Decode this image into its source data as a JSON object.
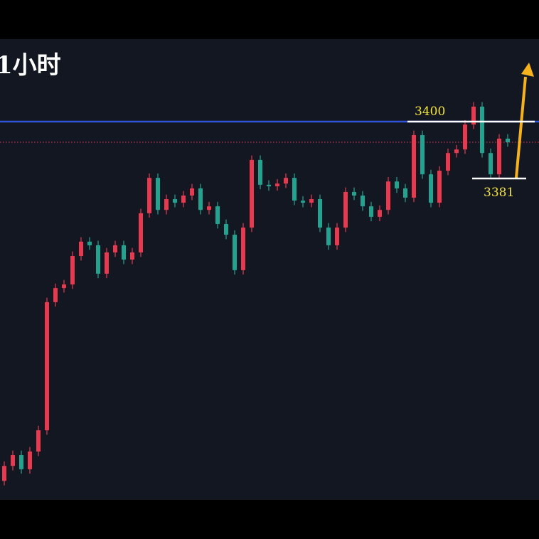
{
  "chart_data": {
    "type": "candlestick",
    "title": "1小时",
    "up_color": "#e8394f",
    "down_color": "#22a38f",
    "ylim": [
      3273.65,
      3427.55
    ],
    "open": [
      3280.0,
      3285.0,
      3288.6,
      3283.9,
      3289.8,
      3296.9,
      3339.7,
      3344.4,
      3345.6,
      3355.1,
      3359.9,
      3358.7,
      3349.2,
      3356.3,
      3358.7,
      3353.9,
      3356.3,
      3369.4,
      3381.2,
      3370.5,
      3374.1,
      3372.9,
      3375.3,
      3377.7,
      3370.5,
      3371.7,
      3365.8,
      3362.2,
      3350.4,
      3364.6,
      3387.2,
      3378.9,
      3378.4,
      3379.3,
      3381.2,
      3373.6,
      3372.9,
      3374.1,
      3364.6,
      3358.7,
      3364.6,
      3376.5,
      3375.3,
      3371.7,
      3368.2,
      3370.5,
      3380.0,
      3377.7,
      3374.6,
      3395.5,
      3382.4,
      3372.9,
      3383.6,
      3389.5,
      3390.7,
      3399.0,
      3405.0,
      3389.5,
      3382.4,
      3394.3
    ],
    "high": [
      3286.5,
      3290.1,
      3290.1,
      3291.3,
      3298.4,
      3341.2,
      3345.9,
      3347.1,
      3356.6,
      3361.4,
      3361.4,
      3360.2,
      3357.8,
      3360.2,
      3360.2,
      3357.8,
      3370.9,
      3382.7,
      3382.7,
      3375.6,
      3375.6,
      3376.8,
      3379.2,
      3379.2,
      3373.2,
      3373.2,
      3367.3,
      3363.7,
      3366.1,
      3388.7,
      3388.7,
      3380.4,
      3380.8,
      3382.7,
      3382.7,
      3375.1,
      3375.6,
      3375.6,
      3366.1,
      3366.1,
      3378.0,
      3378.0,
      3376.8,
      3373.2,
      3372.0,
      3381.5,
      3381.5,
      3379.2,
      3397.0,
      3397.0,
      3383.9,
      3385.1,
      3391.0,
      3392.2,
      3400.5,
      3406.5,
      3406.5,
      3391.0,
      3395.8,
      3395.8
    ],
    "low": [
      3278.5,
      3283.5,
      3282.4,
      3282.4,
      3288.3,
      3295.4,
      3338.2,
      3342.9,
      3344.1,
      3353.6,
      3357.2,
      3347.7,
      3347.7,
      3354.8,
      3352.4,
      3352.4,
      3354.8,
      3367.9,
      3369.0,
      3369.0,
      3371.4,
      3371.4,
      3373.8,
      3369.0,
      3369.0,
      3364.3,
      3360.7,
      3348.9,
      3348.9,
      3363.1,
      3377.4,
      3376.9,
      3376.9,
      3377.8,
      3372.1,
      3371.4,
      3371.4,
      3363.1,
      3357.2,
      3357.2,
      3363.1,
      3373.8,
      3370.2,
      3366.7,
      3366.7,
      3369.0,
      3376.2,
      3373.1,
      3373.1,
      3380.9,
      3371.4,
      3371.4,
      3382.1,
      3388.0,
      3389.2,
      3397.5,
      3388.0,
      3380.9,
      3380.9,
      3391.6
    ],
    "close": [
      3285.0,
      3288.6,
      3283.9,
      3289.8,
      3296.9,
      3339.7,
      3344.4,
      3345.6,
      3355.1,
      3359.9,
      3358.7,
      3349.2,
      3356.3,
      3358.7,
      3353.9,
      3356.3,
      3369.4,
      3381.2,
      3370.5,
      3374.1,
      3372.9,
      3375.3,
      3377.7,
      3370.5,
      3371.7,
      3365.8,
      3362.2,
      3350.4,
      3364.6,
      3387.2,
      3378.9,
      3378.4,
      3379.3,
      3381.2,
      3373.6,
      3372.9,
      3374.1,
      3364.6,
      3358.7,
      3364.6,
      3376.5,
      3375.3,
      3371.7,
      3368.2,
      3370.5,
      3380.0,
      3377.7,
      3374.6,
      3395.5,
      3382.4,
      3372.9,
      3383.6,
      3389.5,
      3390.7,
      3399.0,
      3405.0,
      3389.5,
      3382.4,
      3394.3,
      3393.1
    ],
    "horizontal_line": {
      "value": 3400,
      "color": "#2f54d8"
    },
    "current_price": {
      "value": 3393.1,
      "color": "#e8394f"
    },
    "levels": [
      {
        "value": 3400
      },
      {
        "value": 3381
      }
    ]
  }
}
